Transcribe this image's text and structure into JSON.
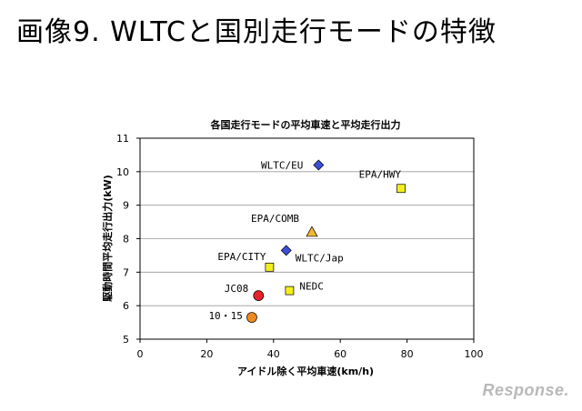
{
  "slide": {
    "title": "画像9.  WLTCと国別走行モードの特徴"
  },
  "watermark": "Response.",
  "chart_data": {
    "type": "scatter",
    "title": "各国走行モードの平均車速と平均走行出力",
    "xlabel": "アイドル除く平均車速(km/h)",
    "ylabel": "駆動時間平均走行出力(kW)",
    "xlim": [
      0,
      100
    ],
    "ylim": [
      5,
      11
    ],
    "x_ticks": [
      "0",
      "20",
      "40",
      "60",
      "80",
      "100"
    ],
    "y_ticks": [
      "5",
      "6",
      "7",
      "8",
      "9",
      "10",
      "11"
    ],
    "grid": true,
    "legend": "none",
    "points": [
      {
        "label": "WLTC/EU",
        "x": 53.5,
        "y": 10.2,
        "marker": "diamond",
        "color": "#3d4fd6"
      },
      {
        "label": "EPA/HWY",
        "x": 78.2,
        "y": 9.5,
        "marker": "square",
        "color": "#f5ee1e"
      },
      {
        "label": "EPA/COMB",
        "x": 51.5,
        "y": 8.2,
        "marker": "triangle",
        "color": "#f0b62e"
      },
      {
        "label": "WLTC/Jap",
        "x": 43.8,
        "y": 7.65,
        "marker": "diamond",
        "color": "#3d4fd6"
      },
      {
        "label": "EPA/CITY",
        "x": 38.8,
        "y": 7.15,
        "marker": "square",
        "color": "#f5ee1e"
      },
      {
        "label": "NEDC",
        "x": 44.8,
        "y": 6.45,
        "marker": "square",
        "color": "#f5ee1e"
      },
      {
        "label": "JC08",
        "x": 35.5,
        "y": 6.3,
        "marker": "circle",
        "color": "#e8232a"
      },
      {
        "label": "10・15",
        "x": 33.5,
        "y": 5.65,
        "marker": "circle",
        "color": "#f08a1e"
      }
    ]
  }
}
